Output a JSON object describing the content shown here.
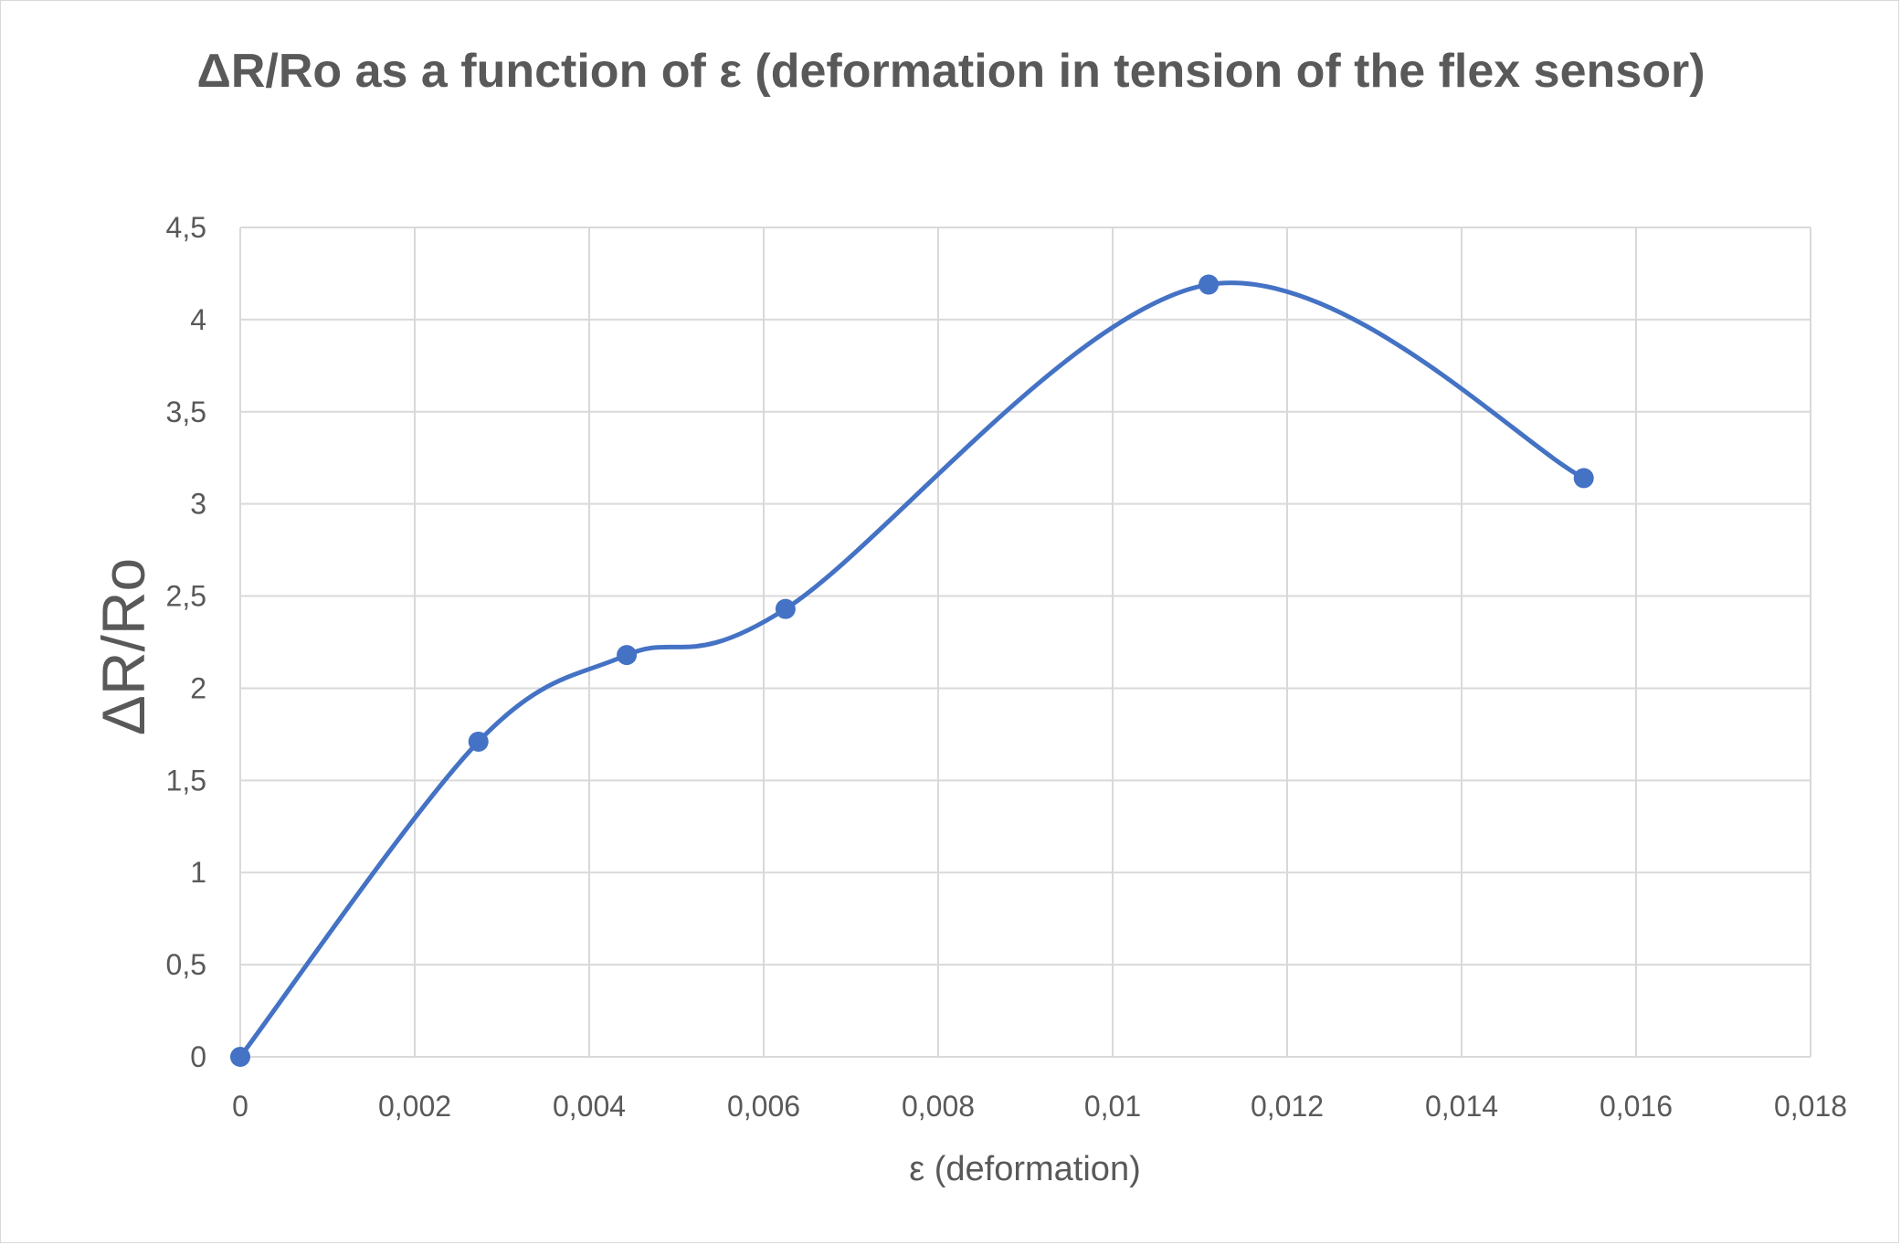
{
  "chart_data": {
    "type": "scatter",
    "title": "ΔR/Ro as a function of ε (deformation in tension of the flex sensor)",
    "xlabel": "ε (deformation)",
    "ylabel": "ΔR/Ro",
    "xlim": [
      0,
      0.018
    ],
    "ylim": [
      0,
      4.5
    ],
    "x_ticks": [
      "0",
      "0,002",
      "0,004",
      "0,006",
      "0,008",
      "0,01",
      "0,012",
      "0,014",
      "0,016",
      "0,018"
    ],
    "y_ticks": [
      "0",
      "0,5",
      "1",
      "1,5",
      "2",
      "2,5",
      "3",
      "3,5",
      "4",
      "4,5"
    ],
    "grid": true,
    "smoothed_line": true,
    "markers": true,
    "series": [
      {
        "color": "#4472C4",
        "x": [
          0,
          0.00273,
          0.00443,
          0.00625,
          0.0111,
          0.0154
        ],
        "y": [
          0,
          1.71,
          2.18,
          2.43,
          4.19,
          3.14
        ]
      }
    ]
  }
}
